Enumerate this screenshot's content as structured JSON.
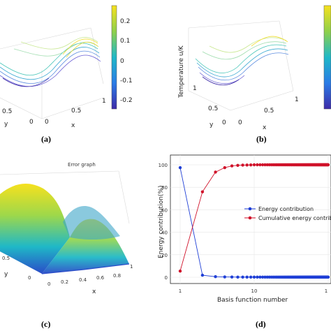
{
  "colors": {
    "energy": "#1f3fd6",
    "cumulative": "#d0122a",
    "surface_low": "#3d2ba8",
    "surface_high": "#f6e11e"
  },
  "panels": {
    "a": {
      "label": "(a)",
      "ylabel_3d": "y",
      "xlabel_3d": "x",
      "ticks_y": [
        "0.5",
        "0"
      ],
      "ticks_x": [
        "0",
        "0.5",
        "1"
      ],
      "colorbar_ticks": [
        "0.2",
        "0.1",
        "0",
        "-0.1",
        "-0.2"
      ]
    },
    "b": {
      "label": "(b)",
      "zlabel": "Temperature u/K",
      "ylabel_3d": "y",
      "xlabel_3d": "x",
      "ticks_y": [
        "1",
        "0.5",
        "0"
      ],
      "ticks_x": [
        "0",
        "0.5",
        "1"
      ]
    },
    "c": {
      "label": "(c)",
      "title": "Error graph",
      "ylabel_3d": "y",
      "xlabel_3d": "x",
      "ticks_y": [
        "0.5",
        "0"
      ],
      "ticks_x": [
        "0",
        "0.2",
        "0.4",
        "0.6",
        "0.8",
        "1"
      ]
    },
    "d": {
      "label": "(d)"
    }
  },
  "chart_data": {
    "type": "line",
    "xscale": "log",
    "xlabel": "Basis function number",
    "ylabel": "Energy contribution(%)",
    "xlim": [
      1,
      100
    ],
    "ylim": [
      0,
      100
    ],
    "x_ticks": [
      "1",
      "10",
      "1"
    ],
    "y_ticks": [
      "0",
      "20",
      "40",
      "60",
      "80",
      "100"
    ],
    "legend_position": "right",
    "x": [
      1,
      2,
      3,
      4,
      5,
      6,
      7,
      8,
      9,
      10,
      11,
      12,
      13,
      14,
      15,
      16,
      17,
      18,
      19,
      20,
      21,
      22,
      23,
      24,
      25,
      26,
      27,
      28,
      29,
      30,
      31,
      32,
      33,
      34,
      35,
      36,
      37,
      38,
      39,
      40,
      41,
      42,
      43,
      44,
      45,
      46,
      47,
      48,
      49,
      50,
      51,
      52,
      53,
      54,
      55,
      56,
      57,
      58,
      59,
      60,
      61,
      62,
      63,
      64,
      65,
      66,
      67,
      68,
      69,
      70,
      71,
      72,
      73,
      74,
      75,
      76,
      77,
      78,
      79,
      80,
      81,
      82,
      83,
      84,
      85,
      86,
      87,
      88,
      89,
      90,
      91,
      92,
      93,
      94,
      95,
      96,
      97,
      98,
      99,
      100
    ],
    "series": [
      {
        "name": "Energy contribution",
        "values": [
          97.5,
          1.8,
          0.5,
          0.3,
          0.2,
          0.1,
          0.1,
          0.1,
          0.1,
          0.1,
          0.1,
          0.1,
          0.1,
          0.1,
          0.1,
          0.1,
          0.1,
          0.1,
          0.1,
          0.1,
          0.1,
          0.1,
          0.1,
          0.1,
          0.1,
          0.1,
          0.1,
          0.1,
          0.1,
          0.1,
          0.1,
          0.1,
          0.1,
          0.1,
          0.1,
          0.1,
          0.1,
          0.1,
          0.1,
          0.1,
          0.1,
          0.1,
          0.1,
          0.1,
          0.1,
          0.1,
          0.1,
          0.1,
          0.1,
          0.1,
          0.1,
          0.1,
          0.1,
          0.1,
          0.1,
          0.1,
          0.1,
          0.1,
          0.1,
          0.1,
          0.1,
          0.1,
          0.1,
          0.1,
          0.1,
          0.1,
          0.1,
          0.1,
          0.1,
          0.1,
          0.1,
          0.1,
          0.1,
          0.1,
          0.1,
          0.1,
          0.1,
          0.1,
          0.1,
          0.1,
          0.1,
          0.1,
          0.1,
          0.1,
          0.1,
          0.1,
          0.1,
          0.1,
          0.1,
          0.1,
          0.1,
          0.1,
          0.1,
          0.1,
          0.1,
          0.1,
          0.1,
          0.1,
          0.1,
          0.1
        ]
      },
      {
        "name": "Cumulative energy contribution",
        "values": [
          5.5,
          76,
          93.5,
          97.5,
          99,
          99.5,
          99.7,
          99.8,
          99.9,
          100,
          100,
          100,
          100,
          100,
          100,
          100,
          100,
          100,
          100,
          100,
          100,
          100,
          100,
          100,
          100,
          100,
          100,
          100,
          100,
          100,
          100,
          100,
          100,
          100,
          100,
          100,
          100,
          100,
          100,
          100,
          100,
          100,
          100,
          100,
          100,
          100,
          100,
          100,
          100,
          100,
          100,
          100,
          100,
          100,
          100,
          100,
          100,
          100,
          100,
          100,
          100,
          100,
          100,
          100,
          100,
          100,
          100,
          100,
          100,
          100,
          100,
          100,
          100,
          100,
          100,
          100,
          100,
          100,
          100,
          100,
          100,
          100,
          100,
          100,
          100,
          100,
          100,
          100,
          100,
          100,
          100,
          100,
          100,
          100,
          100,
          100,
          100,
          100,
          100,
          100
        ]
      }
    ]
  }
}
